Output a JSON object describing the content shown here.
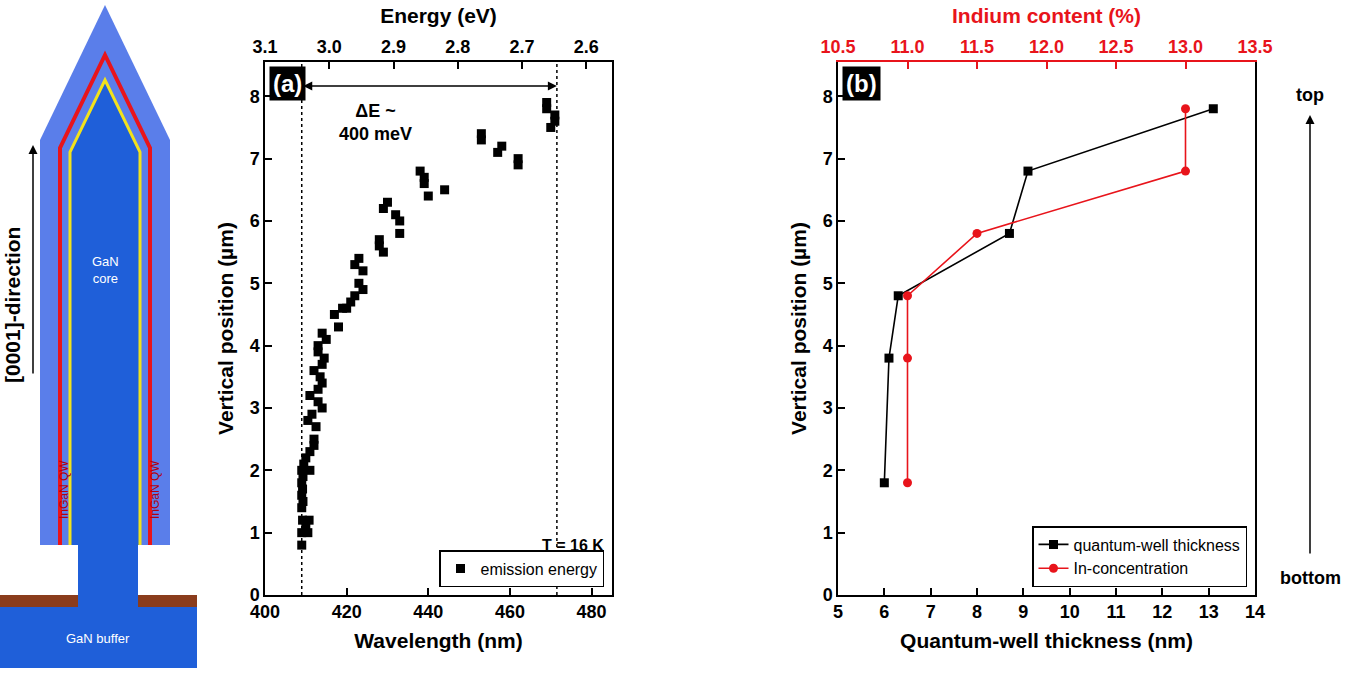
{
  "diagram": {
    "direction_label": "[0001]-direction",
    "core_label": [
      "GaN",
      "core"
    ],
    "qw_labels": [
      "InGaN QW",
      "InGaN QW"
    ],
    "buffer_label": "GaN buffer"
  },
  "chart_data": [
    {
      "panel": "(a)",
      "type": "scatter",
      "x_label": "Wavelength (nm)",
      "x2_label": "Energy (eV)",
      "y_label": "Vertical position (µm)",
      "xlim": [
        400,
        485
      ],
      "xticks": [
        400,
        420,
        440,
        460,
        480
      ],
      "x2lim": [
        3.1,
        2.56
      ],
      "x2ticks": [
        3.1,
        {
          "value": 3,
          "label": "3.0"
        },
        2.9,
        2.8,
        2.7,
        2.6
      ],
      "ylim": [
        0,
        8.55
      ],
      "yticks": [
        0,
        1,
        2,
        3,
        4,
        5,
        6,
        7,
        8
      ],
      "grid": false,
      "legend": "lower right",
      "vlines": [
        409,
        471.5
      ],
      "annotations": [
        "ΔE ~\n400 meV",
        "T = 16 K"
      ],
      "series": [
        {
          "name": "emission energy",
          "color": "#000000",
          "marker": "square",
          "x": [
            409,
            409,
            409.2,
            409,
            409.3,
            409,
            409.2,
            409,
            409.3,
            409,
            409.5,
            410.5,
            410.8,
            410,
            410,
            411,
            411,
            410.5,
            411,
            411.5,
            412,
            412,
            412,
            412.5,
            413,
            413,
            413,
            413,
            413.5,
            414,
            414,
            414,
            414,
            414.5,
            415,
            417,
            418,
            419,
            420,
            421,
            422,
            422,
            423,
            423,
            424,
            424,
            428,
            428,
            429,
            429,
            430,
            432,
            433,
            433,
            438,
            439,
            439,
            440,
            444,
            453,
            453,
            457,
            458,
            462,
            462,
            469,
            469,
            470,
            471,
            471
          ],
          "values": [
            0.8,
            1.0,
            1.2,
            1.4,
            1.5,
            1.6,
            1.7,
            1.8,
            1.9,
            2.0,
            2.1,
            1.0,
            1.2,
            1.1,
            2.2,
            2.0,
            2.3,
            2.8,
            3.2,
            2.9,
            2.5,
            2.4,
            3.6,
            2.7,
            3.1,
            3.3,
            3.9,
            4.0,
            3.5,
            3.0,
            3.4,
            3.7,
            4.2,
            3.8,
            4.1,
            4.5,
            4.3,
            4.6,
            4.6,
            4.7,
            5.3,
            4.8,
            5.4,
            5.0,
            5.2,
            4.9,
            5.7,
            5.6,
            5.5,
            6.2,
            6.3,
            6.1,
            6.0,
            5.8,
            6.8,
            6.7,
            6.6,
            6.4,
            6.5,
            7.4,
            7.3,
            7.1,
            7.2,
            7.0,
            6.9,
            7.9,
            7.8,
            7.5,
            7.7,
            7.6
          ]
        }
      ]
    },
    {
      "panel": "(b)",
      "type": "line",
      "x_label": "Quantum-well thickness (nm)",
      "x2_label": "Indium content (%)",
      "y_label": "Vertical position (µm)",
      "xlim": [
        5,
        14
      ],
      "xticks": [
        5,
        6,
        7,
        8,
        9,
        10,
        11,
        12,
        13,
        14
      ],
      "x2lim": [
        10.5,
        13.5
      ],
      "x2ticks": [
        10.5,
        {
          "value": 11,
          "label": "11.0"
        },
        11.5,
        {
          "value": 12,
          "label": "12.0"
        },
        12.5,
        {
          "value": 13,
          "label": "13.0"
        },
        13.5
      ],
      "ylim": [
        0,
        8.55
      ],
      "yticks": [
        0,
        1,
        2,
        3,
        4,
        5,
        6,
        7,
        8
      ],
      "grid": false,
      "legend": "lower right",
      "annotations": [
        "top",
        "bottom"
      ],
      "series": [
        {
          "name": "quantum-well thickness",
          "color": "#000000",
          "marker": "square",
          "x": [
            6.0,
            6.1,
            6.3,
            8.7,
            9.1,
            13.1
          ],
          "values": [
            1.8,
            3.8,
            4.8,
            5.8,
            6.8,
            7.8
          ]
        },
        {
          "name": "In-concentration",
          "color": "#e8141b",
          "marker": "circle",
          "axis": "x2",
          "x": [
            11,
            11,
            11,
            11.5,
            13,
            13
          ],
          "values": [
            1.8,
            3.8,
            4.8,
            5.8,
            6.8,
            7.8
          ]
        }
      ]
    }
  ]
}
